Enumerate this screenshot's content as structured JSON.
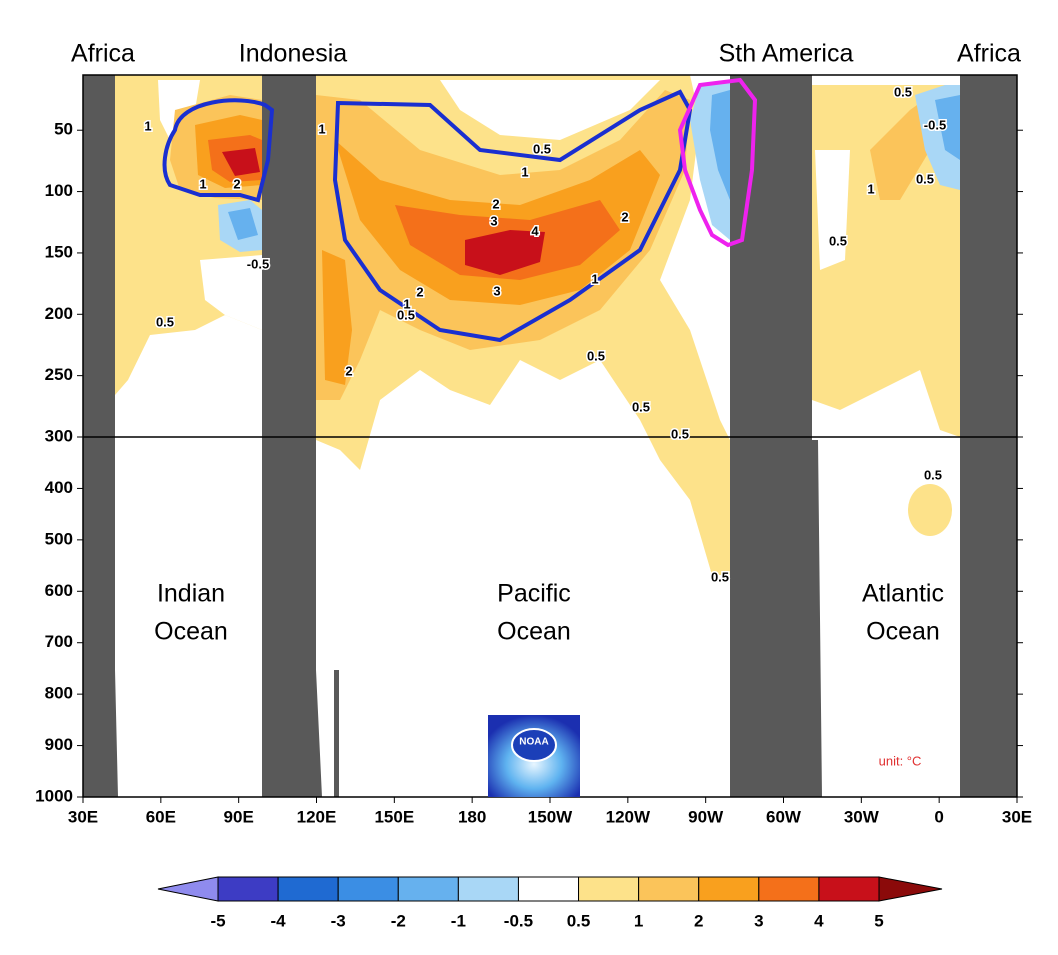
{
  "chart_data": {
    "type": "contour",
    "region_labels": [
      "Africa",
      "Indonesia",
      "Sth America",
      "Africa"
    ],
    "ocean_labels": [
      [
        "Indian",
        "Ocean"
      ],
      [
        "Pacific",
        "Ocean"
      ],
      [
        "Atlantic",
        "Ocean"
      ]
    ],
    "xlim": [
      30,
      390
    ],
    "xticks": [
      {
        "value": 30,
        "label": "30E"
      },
      {
        "value": 60,
        "label": "60E"
      },
      {
        "value": 90,
        "label": "90E"
      },
      {
        "value": 120,
        "label": "120E"
      },
      {
        "value": 150,
        "label": "150E"
      },
      180,
      {
        "value": 210,
        "label": "150W"
      },
      {
        "value": 240,
        "label": "120W"
      },
      {
        "value": 270,
        "label": "90W"
      },
      {
        "value": 300,
        "label": "60W"
      },
      {
        "value": 330,
        "label": "30W"
      },
      {
        "value": 360,
        "label": "0"
      },
      {
        "value": 390,
        "label": "30E"
      }
    ],
    "ylim": [
      5,
      1000
    ],
    "axis_break": 300,
    "yticks": [
      50,
      100,
      150,
      200,
      250,
      300,
      400,
      500,
      600,
      700,
      800,
      900,
      1000
    ],
    "contour_labels": [
      1,
      1,
      2,
      -0.5,
      0.5,
      1,
      0.5,
      1,
      2,
      3,
      4,
      2,
      1,
      3,
      2,
      1,
      0.5,
      2,
      0.5,
      0.5,
      0.5,
      0.5,
      0.5,
      -0.5,
      0.5,
      1,
      0.5,
      0.5
    ],
    "unit_label": "unit: °C",
    "logo_text": "NOAA",
    "colorbar": {
      "levels": [
        -5,
        -4,
        -3,
        -2,
        -1,
        -0.5,
        0.5,
        1,
        2,
        3,
        4,
        5
      ],
      "colors": [
        "#8f8bee",
        "#3d3cc4",
        "#1f6ad2",
        "#3b8ee4",
        "#66b1ee",
        "#a9d7f6",
        "#ffffff",
        "#fde28a",
        "#fbc45a",
        "#f9a01e",
        "#f4701a",
        "#c8101a",
        "#8b0a0a"
      ]
    }
  }
}
